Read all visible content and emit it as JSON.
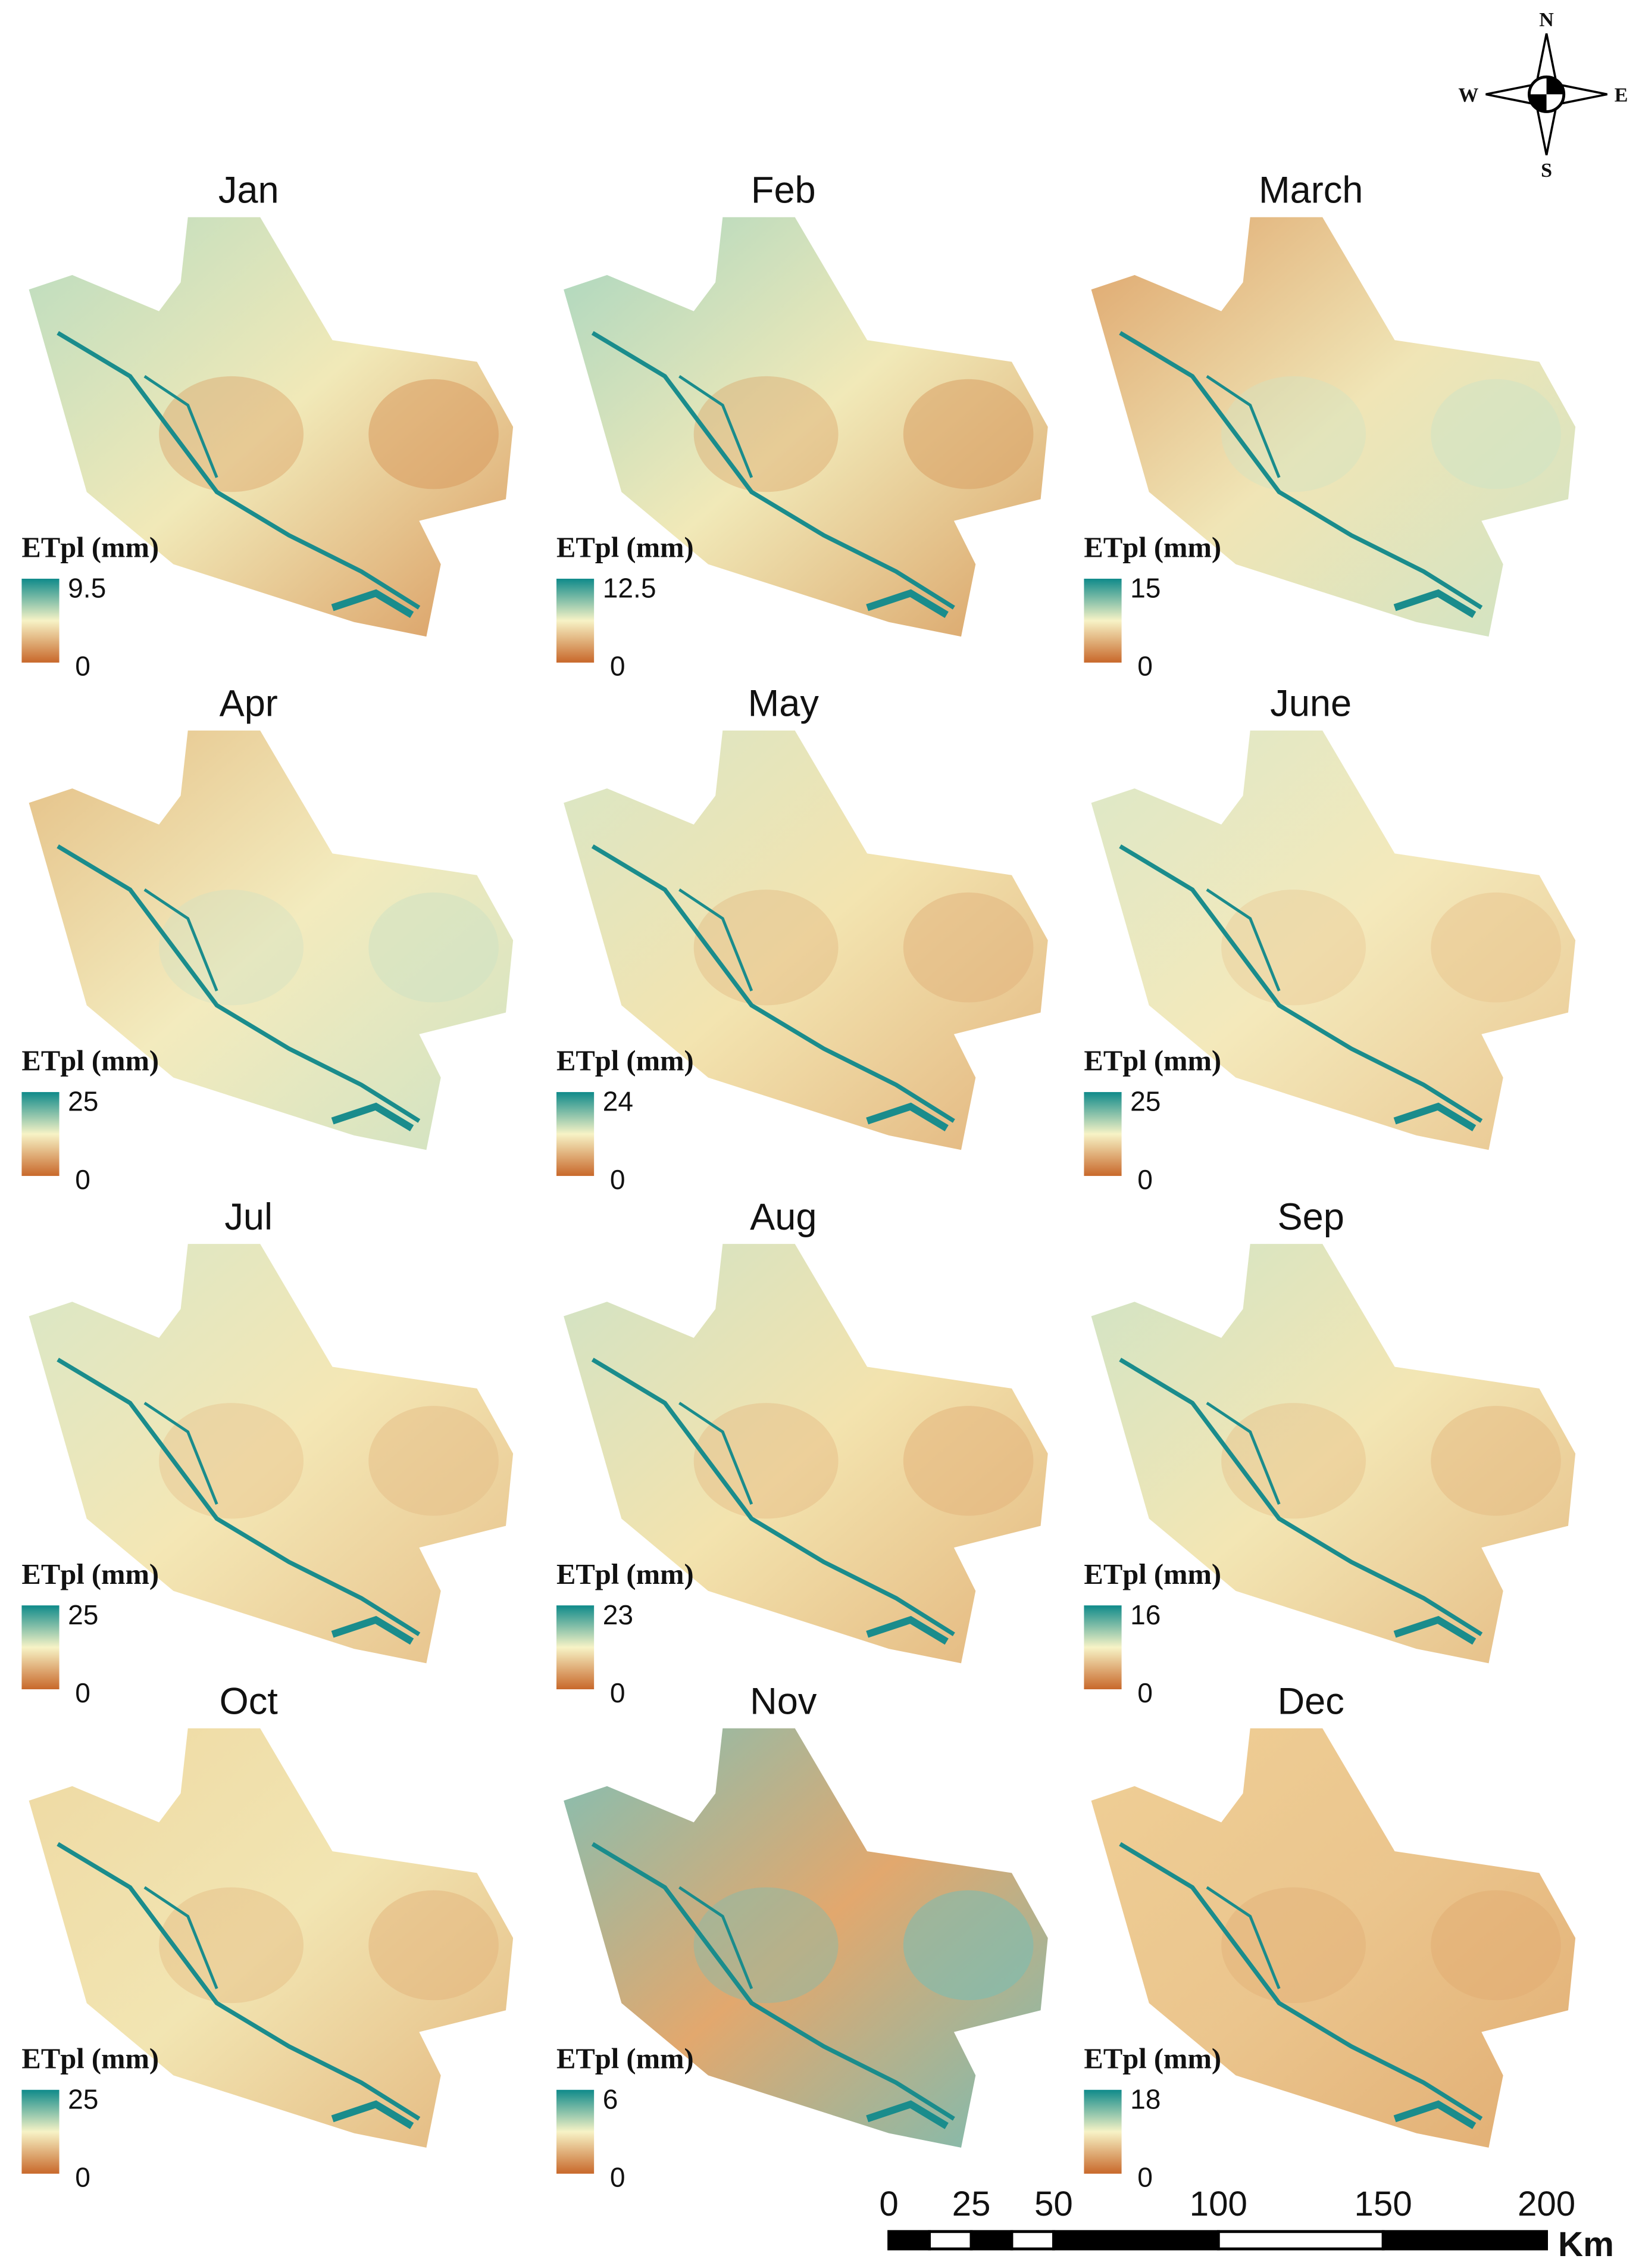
{
  "compass": {
    "north": "N",
    "south": "S",
    "east": "E",
    "west": "W"
  },
  "panels": [
    {
      "title": "Jan",
      "legend_title": "ETpl (mm)",
      "max": "9.5",
      "min": "0"
    },
    {
      "title": "Feb",
      "legend_title": "ETpl (mm)",
      "max": "12.5",
      "min": "0"
    },
    {
      "title": "March",
      "legend_title": "ETpl (mm)",
      "max": "15",
      "min": "0"
    },
    {
      "title": "Apr",
      "legend_title": "ETpl (mm)",
      "max": "25",
      "min": "0"
    },
    {
      "title": "May",
      "legend_title": "ETpl (mm)",
      "max": "24",
      "min": "0"
    },
    {
      "title": "June",
      "legend_title": "ETpl (mm)",
      "max": "25",
      "min": "0"
    },
    {
      "title": "Jul",
      "legend_title": "ETpl (mm)",
      "max": "25",
      "min": "0"
    },
    {
      "title": "Aug",
      "legend_title": "ETpl (mm)",
      "max": "23",
      "min": "0"
    },
    {
      "title": "Sep",
      "legend_title": "ETpl (mm)",
      "max": "16",
      "min": "0"
    },
    {
      "title": "Oct",
      "legend_title": "ETpl (mm)",
      "max": "25",
      "min": "0"
    },
    {
      "title": "Nov",
      "legend_title": "ETpl (mm)",
      "max": "6",
      "min": "0"
    },
    {
      "title": "Dec",
      "legend_title": "ETpl (mm)",
      "max": "18",
      "min": "0"
    }
  ],
  "scale_bar": {
    "ticks": [
      "0",
      "25",
      "50",
      "100",
      "150",
      "200"
    ],
    "unit": "Km"
  }
}
